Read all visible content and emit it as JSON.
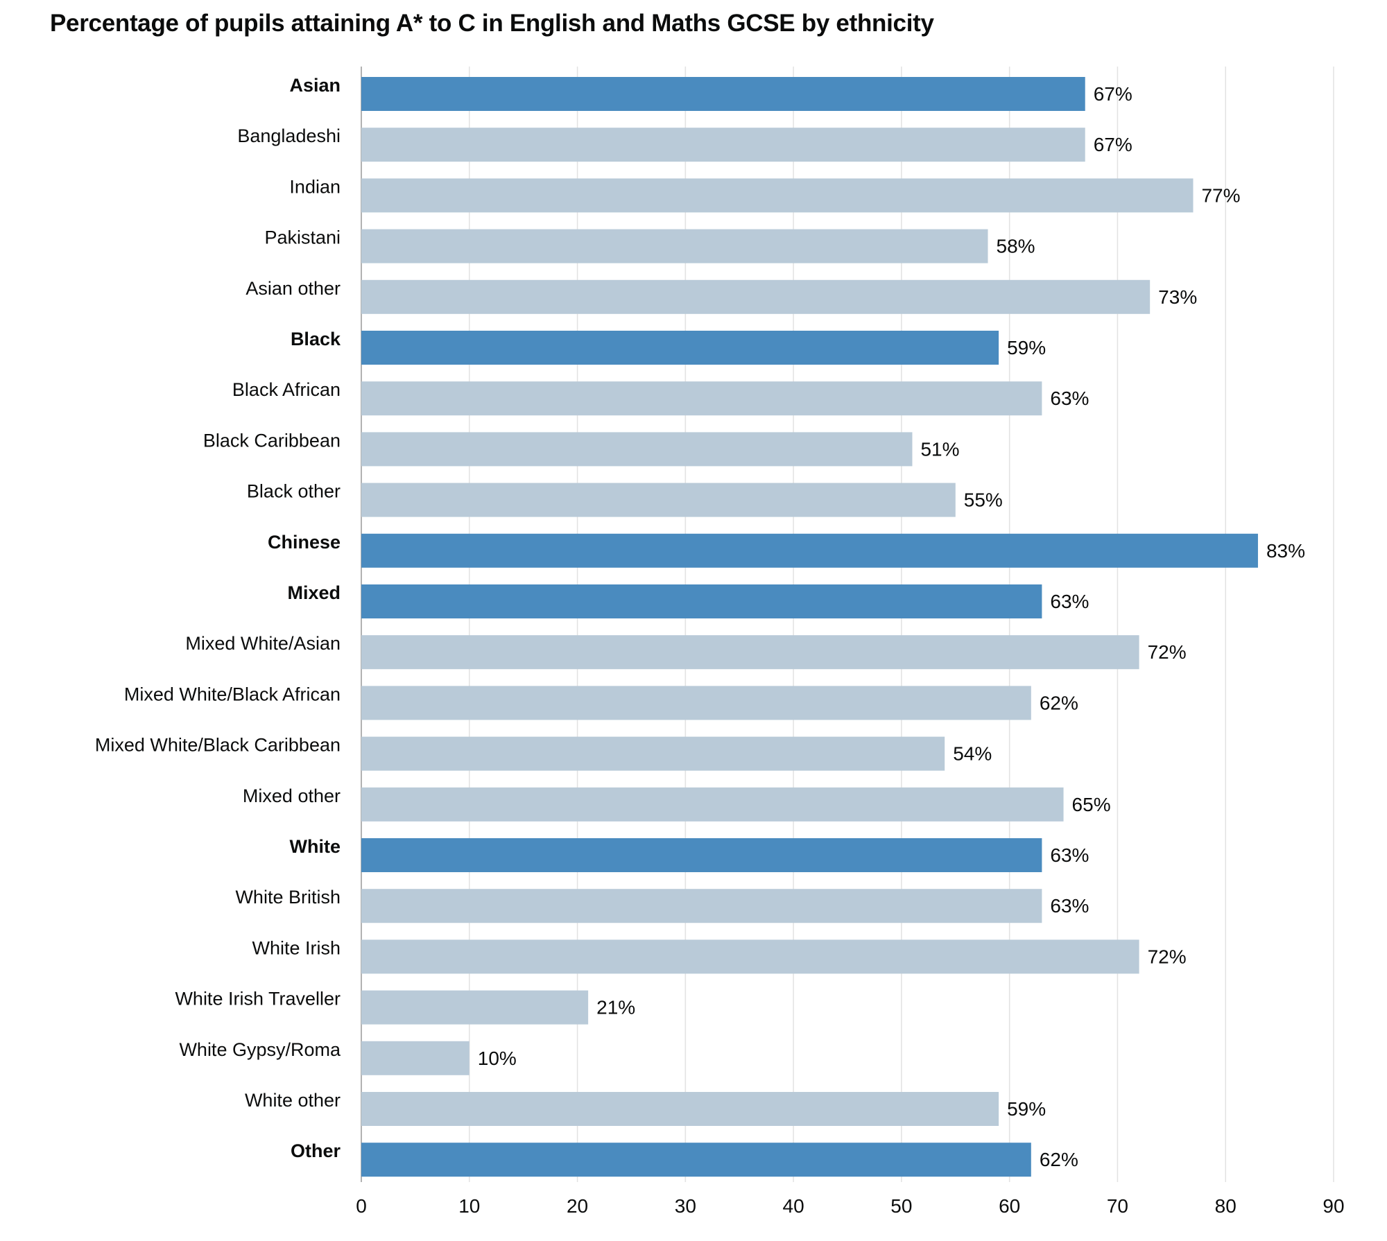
{
  "chart_data": {
    "type": "bar",
    "orientation": "horizontal",
    "title": "Percentage of pupils attaining A* to C in English and Maths GCSE by ethnicity",
    "xlabel": "",
    "ylabel": "",
    "xlim": [
      0,
      90
    ],
    "xticks": [
      0,
      10,
      20,
      30,
      40,
      50,
      60,
      70,
      80,
      90
    ],
    "grid": "vertical",
    "value_suffix": "%",
    "colors": {
      "group": "#4a8bbf",
      "subgroup": "#b9cad8"
    },
    "categories": [
      "Asian",
      "Bangladeshi",
      "Indian",
      "Pakistani",
      "Asian other",
      "Black",
      "Black African",
      "Black Caribbean",
      "Black other",
      "Chinese",
      "Mixed",
      "Mixed White/Asian",
      "Mixed White/Black African",
      "Mixed White/Black Caribbean",
      "Mixed other",
      "White",
      "White British",
      "White Irish",
      "White Irish Traveller",
      "White Gypsy/Roma",
      "White other",
      "Other"
    ],
    "values": [
      67,
      67,
      77,
      58,
      73,
      59,
      63,
      51,
      55,
      83,
      63,
      72,
      62,
      54,
      65,
      63,
      63,
      72,
      21,
      10,
      59,
      62
    ],
    "is_group": [
      true,
      false,
      false,
      false,
      false,
      true,
      false,
      false,
      false,
      true,
      true,
      false,
      false,
      false,
      false,
      true,
      false,
      false,
      false,
      false,
      false,
      true
    ]
  }
}
